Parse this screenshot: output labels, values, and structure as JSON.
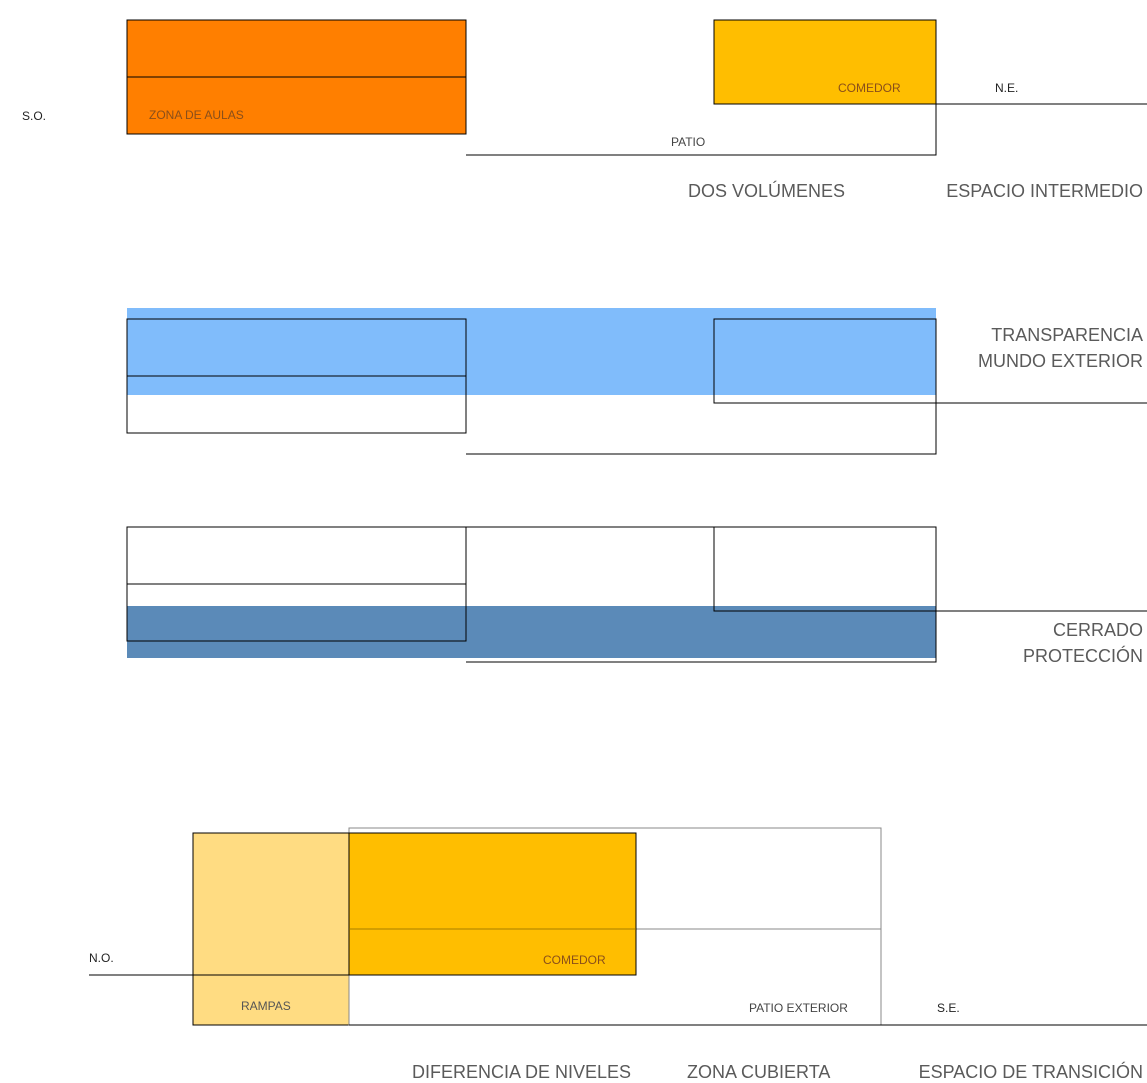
{
  "colors": {
    "aulas": "#FF7F00",
    "comedor": "#FFBE00",
    "rampas": "#FFDC82",
    "transparencia": "#80BCFB",
    "cerrado": "#5B8AB8",
    "line": "#000000",
    "label_small": "#8a4f1a",
    "label_large": "#5a5a5a"
  },
  "panel1": {
    "label_so": "S.O.",
    "label_ne": "N.E.",
    "label_aulas": "ZONA DE AULAS",
    "label_comedor": "COMEDOR",
    "label_patio": "PATIO",
    "caption_left": "DOS VOLÚMENES",
    "caption_right": "ESPACIO INTERMEDIO"
  },
  "panel2": {
    "caption_line1": "TRANSPARENCIA",
    "caption_line2": "MUNDO EXTERIOR"
  },
  "panel3": {
    "caption_line1": "CERRADO",
    "caption_line2": "PROTECCIÓN"
  },
  "panel4": {
    "label_no": "N.O.",
    "label_se": "S.E.",
    "label_rampas": "RAMPAS",
    "label_comedor": "COMEDOR",
    "label_patio_exterior": "PATIO EXTERIOR",
    "caption_1": "DIFERENCIA DE NIVELES",
    "caption_2": "ZONA CUBIERTA",
    "caption_3": "ESPACIO DE TRANSICIÓN"
  }
}
